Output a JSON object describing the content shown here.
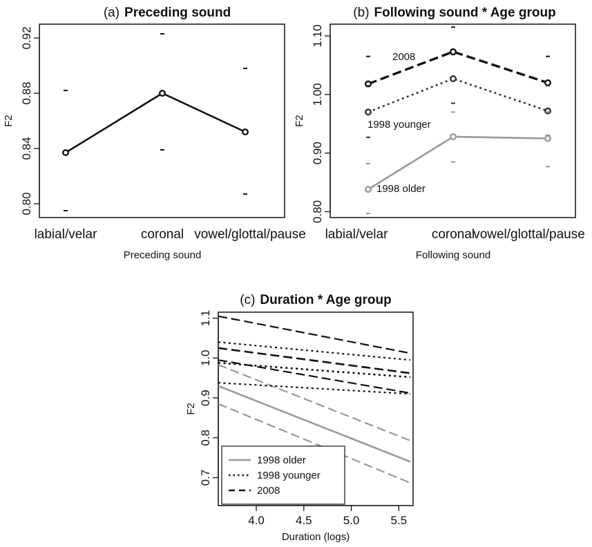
{
  "chart_data": [
    {
      "type": "line",
      "panel": "(a)",
      "title": "Preceding sound",
      "xlabel": "Preceding sound",
      "ylabel": "F2",
      "categories": [
        "labial/velar",
        "coronal",
        "vowel/glottal/pause"
      ],
      "ylim": [
        0.79,
        0.93
      ],
      "yticks": [
        0.8,
        0.84,
        0.88,
        0.92
      ],
      "ytick_labels": [
        "0.80",
        "0.84",
        "0.88",
        "0.92"
      ],
      "series": [
        {
          "values": [
            0.837,
            0.88,
            0.852
          ],
          "ci_low": [
            0.795,
            0.839,
            0.807
          ],
          "ci_high": [
            0.882,
            0.923,
            0.898
          ],
          "color": "#111111"
        }
      ]
    },
    {
      "type": "line",
      "panel": "(b)",
      "title": "Following sound * Age group",
      "xlabel": "Following sound",
      "ylabel": "F2",
      "categories": [
        "labial/velar",
        "coronal",
        "vowel/glottal/pause"
      ],
      "ylim": [
        0.79,
        1.12
      ],
      "yticks": [
        0.8,
        0.9,
        1.0,
        1.1
      ],
      "ytick_labels": [
        "0.80",
        "0.90",
        "1.00",
        "1.10"
      ],
      "series": [
        {
          "name": "2008",
          "values": [
            1.018,
            1.073,
            1.02
          ],
          "ci_low": [
            0.972,
            1.03,
            0.975
          ],
          "ci_high": [
            1.065,
            1.115,
            1.065
          ],
          "color": "#111111"
        },
        {
          "name": "1998 younger",
          "values": [
            0.97,
            1.027,
            0.972
          ],
          "ci_low": [
            0.927,
            0.985,
            0.93
          ],
          "ci_high": [
            1.015,
            1.068,
            1.015
          ],
          "color": "#333333"
        },
        {
          "name": "1998 older",
          "values": [
            0.838,
            0.928,
            0.925
          ],
          "ci_low": [
            0.797,
            0.885,
            0.877
          ],
          "ci_high": [
            0.882,
            0.97,
            0.97
          ],
          "color": "#999999"
        }
      ]
    },
    {
      "type": "line",
      "panel": "(c)",
      "title": "Duration * Age group",
      "xlabel": "Duration (logs)",
      "ylabel": "F2",
      "xlim": [
        3.6,
        5.65
      ],
      "ylim": [
        0.63,
        1.115
      ],
      "xticks": [
        4.0,
        4.5,
        5.0,
        5.5
      ],
      "xtick_labels": [
        "4.0",
        "4.5",
        "5.0",
        "5.5"
      ],
      "yticks": [
        0.7,
        0.8,
        0.9,
        1.0,
        1.1
      ],
      "ytick_labels": [
        "0.7",
        "0.8",
        "0.9",
        "1.0",
        "1.1"
      ],
      "legend_position": "bottom-left",
      "legend": [
        "1998 older",
        "1998 younger",
        "2008"
      ],
      "series": [
        {
          "name": "1998 older",
          "x": [
            3.6,
            5.62
          ],
          "values": [
            0.93,
            0.74
          ],
          "ci_low": [
            0.885,
            0.687
          ],
          "ci_high": [
            0.983,
            0.793
          ],
          "color": "#999999"
        },
        {
          "name": "1998 younger",
          "x": [
            3.6,
            5.62
          ],
          "values": [
            0.988,
            0.952
          ],
          "ci_low": [
            0.938,
            0.91
          ],
          "ci_high": [
            1.04,
            0.995
          ],
          "color": "#111111"
        },
        {
          "name": "2008",
          "x": [
            3.6,
            5.62
          ],
          "values": [
            1.025,
            0.962
          ],
          "ci_low": [
            0.995,
            0.912
          ],
          "ci_high": [
            1.105,
            1.012
          ],
          "color": "#111111"
        }
      ]
    }
  ],
  "annotations": {
    "b_2008": "2008",
    "b_younger": "1998 younger",
    "b_older": "1998 older"
  }
}
